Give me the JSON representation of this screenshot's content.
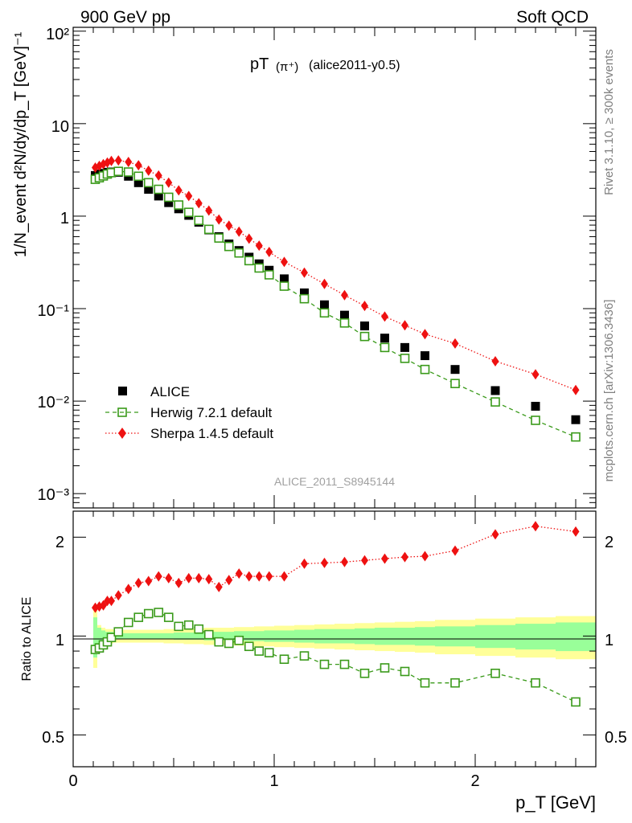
{
  "header": {
    "left": "900 GeV pp",
    "right": "Soft QCD"
  },
  "side_labels": {
    "top": "Rivet 3.1.10, ≥ 300k events",
    "bottom": "mcplots.cern.ch [arXiv:1306.3436]"
  },
  "chart_data": [
    {
      "type": "scatter",
      "title_main": "pT",
      "title_particle": "(π⁺)",
      "title_tag": "(alice2011-y0.5)",
      "watermark": "ALICE_2011_S8945144",
      "ylabel": "1/N_event d²N/dy/dp_T [GeV]⁻¹",
      "yscale": "log",
      "ylim": [
        0.0007,
        110
      ],
      "xlim": [
        0,
        2.6
      ],
      "ytick_labels": [
        "10⁻³",
        "10⁻²",
        "10⁻¹",
        "1",
        "10",
        "10²"
      ],
      "legend": [
        "ALICE",
        "Herwig 7.2.1 default",
        "Sherpa 1.4.5 default"
      ],
      "colors": {
        "alice": "#000000",
        "herwig": "#3a9a1a",
        "sherpa": "#ee1111"
      },
      "x": [
        0.11,
        0.13,
        0.15,
        0.17,
        0.19,
        0.225,
        0.275,
        0.325,
        0.375,
        0.425,
        0.475,
        0.525,
        0.575,
        0.625,
        0.675,
        0.725,
        0.775,
        0.825,
        0.875,
        0.925,
        0.975,
        1.05,
        1.15,
        1.25,
        1.35,
        1.45,
        1.55,
        1.65,
        1.75,
        1.9,
        2.1,
        2.3,
        2.5
      ],
      "series": [
        {
          "name": "ALICE",
          "values": [
            2.75,
            2.85,
            2.9,
            2.98,
            3.0,
            2.98,
            2.7,
            2.3,
            1.95,
            1.65,
            1.4,
            1.2,
            1.02,
            0.86,
            0.71,
            0.6,
            0.5,
            0.425,
            0.36,
            0.305,
            0.26,
            0.21,
            0.148,
            0.11,
            0.085,
            0.065,
            0.048,
            0.038,
            0.031,
            0.022,
            0.013,
            0.0088,
            0.0063
          ]
        },
        {
          "name": "Herwig 7.2.1 default",
          "values": [
            2.5,
            2.6,
            2.72,
            2.85,
            2.95,
            3.05,
            3.0,
            2.7,
            2.3,
            1.95,
            1.6,
            1.32,
            1.1,
            0.9,
            0.72,
            0.58,
            0.47,
            0.4,
            0.33,
            0.275,
            0.232,
            0.175,
            0.128,
            0.09,
            0.07,
            0.05,
            0.038,
            0.029,
            0.022,
            0.0155,
            0.0098,
            0.0062,
            0.0041
          ]
        },
        {
          "name": "Sherpa 1.4.5 default",
          "values": [
            3.35,
            3.5,
            3.65,
            3.8,
            3.95,
            4.0,
            3.85,
            3.55,
            3.1,
            2.75,
            2.3,
            1.9,
            1.65,
            1.38,
            1.15,
            0.92,
            0.79,
            0.68,
            0.57,
            0.48,
            0.41,
            0.32,
            0.245,
            0.185,
            0.14,
            0.107,
            0.082,
            0.066,
            0.053,
            0.042,
            0.027,
            0.0195,
            0.0132
          ]
        }
      ]
    },
    {
      "type": "line",
      "ylabel": "Ratio to ALICE",
      "ylim": [
        0.4,
        2.4
      ],
      "xlim": [
        0,
        2.6
      ],
      "xlabel": "p_T [GeV]",
      "ytick_labels": [
        "0.5",
        "1",
        "2"
      ],
      "xtick_labels": [
        "0",
        "1",
        "2"
      ],
      "band_edges": [
        0.1,
        0.12,
        0.14,
        0.16,
        0.18,
        0.2,
        0.25,
        0.3,
        0.35,
        0.4,
        0.45,
        0.5,
        0.55,
        0.6,
        0.65,
        0.7,
        0.75,
        0.8,
        0.85,
        0.9,
        0.95,
        1.0,
        1.1,
        1.2,
        1.3,
        1.4,
        1.5,
        1.6,
        1.7,
        1.8,
        2.0,
        2.2,
        2.4,
        2.6
      ],
      "band_stat_rel": [
        0.14,
        0.06,
        0.04,
        0.03,
        0.03,
        0.02,
        0.02,
        0.02,
        0.02,
        0.02,
        0.02,
        0.025,
        0.025,
        0.025,
        0.03,
        0.03,
        0.03,
        0.035,
        0.035,
        0.035,
        0.04,
        0.04,
        0.045,
        0.05,
        0.05,
        0.055,
        0.06,
        0.06,
        0.065,
        0.07,
        0.08,
        0.09,
        0.1
      ],
      "band_tot_rel": [
        0.2,
        0.08,
        0.06,
        0.05,
        0.05,
        0.045,
        0.045,
        0.045,
        0.045,
        0.045,
        0.05,
        0.05,
        0.055,
        0.055,
        0.06,
        0.06,
        0.06,
        0.065,
        0.065,
        0.07,
        0.07,
        0.075,
        0.08,
        0.085,
        0.09,
        0.095,
        0.1,
        0.105,
        0.11,
        0.12,
        0.13,
        0.14,
        0.15
      ],
      "series": [
        {
          "name": "Herwig 7.2.1 default",
          "values": [
            0.91,
            0.92,
            0.94,
            0.96,
            0.99,
            1.03,
            1.1,
            1.14,
            1.17,
            1.18,
            1.14,
            1.07,
            1.08,
            1.05,
            1.01,
            0.96,
            0.95,
            0.97,
            0.93,
            0.9,
            0.89,
            0.85,
            0.87,
            0.82,
            0.82,
            0.77,
            0.8,
            0.78,
            0.72,
            0.72,
            0.77,
            0.72,
            0.63
          ]
        },
        {
          "name": "Sherpa 1.4.5 default",
          "values": [
            1.22,
            1.23,
            1.24,
            1.28,
            1.28,
            1.33,
            1.39,
            1.45,
            1.47,
            1.52,
            1.5,
            1.45,
            1.5,
            1.5,
            1.49,
            1.41,
            1.48,
            1.55,
            1.52,
            1.52,
            1.52,
            1.52,
            1.66,
            1.67,
            1.68,
            1.7,
            1.72,
            1.74,
            1.75,
            1.82,
            2.04,
            2.16,
            2.08
          ]
        }
      ]
    }
  ]
}
